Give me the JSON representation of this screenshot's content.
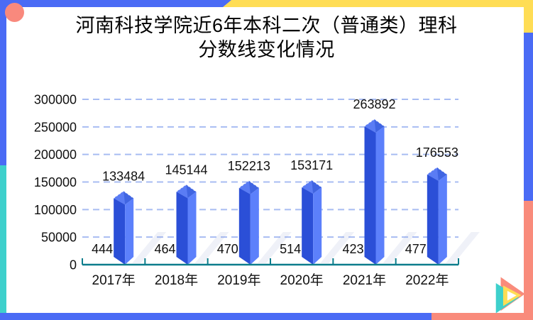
{
  "page": {
    "title_line1": "河南科技学院近6年本科二次（普通类）理科",
    "title_line2": "分数线变化情况"
  },
  "chart_data": {
    "type": "bar",
    "title": "河南科技学院近6年本科二次（普通类）理科分数线变化情况",
    "categories": [
      "2017年",
      "2018年",
      "2019年",
      "2020年",
      "2021年",
      "2022年"
    ],
    "values": [
      133484,
      145144,
      152213,
      153171,
      263892,
      176553
    ],
    "value_labels": [
      "133484",
      "145144",
      "152213",
      "153171",
      "263892",
      "176553"
    ],
    "base_labels": [
      "444",
      "464",
      "470",
      "514",
      "423",
      "477"
    ],
    "ylim": [
      0,
      300000
    ],
    "ytick_step": 50000,
    "ytick_labels": [
      "0",
      "50000",
      "100000",
      "150000",
      "200000",
      "250000",
      "300000"
    ],
    "grid": "horizontal-dashed",
    "legend": "none",
    "bar_style": "3d-column"
  },
  "colors": {
    "border_blue": "#4A6BF5",
    "border_yellow": "#FFDD55",
    "border_coral": "#F98B7B",
    "border_teal": "#3ED0CC",
    "accent_circle": "#F9897D",
    "bar_left_face": "#2B4FD7",
    "bar_right_face": "#5C80FB",
    "bar_top": "#4065E2",
    "bar_top_highlight": "#5A7CF4",
    "gridline": "#A8BCF2",
    "axis_teal": "#0C7D8C",
    "label_text": "#111111"
  }
}
